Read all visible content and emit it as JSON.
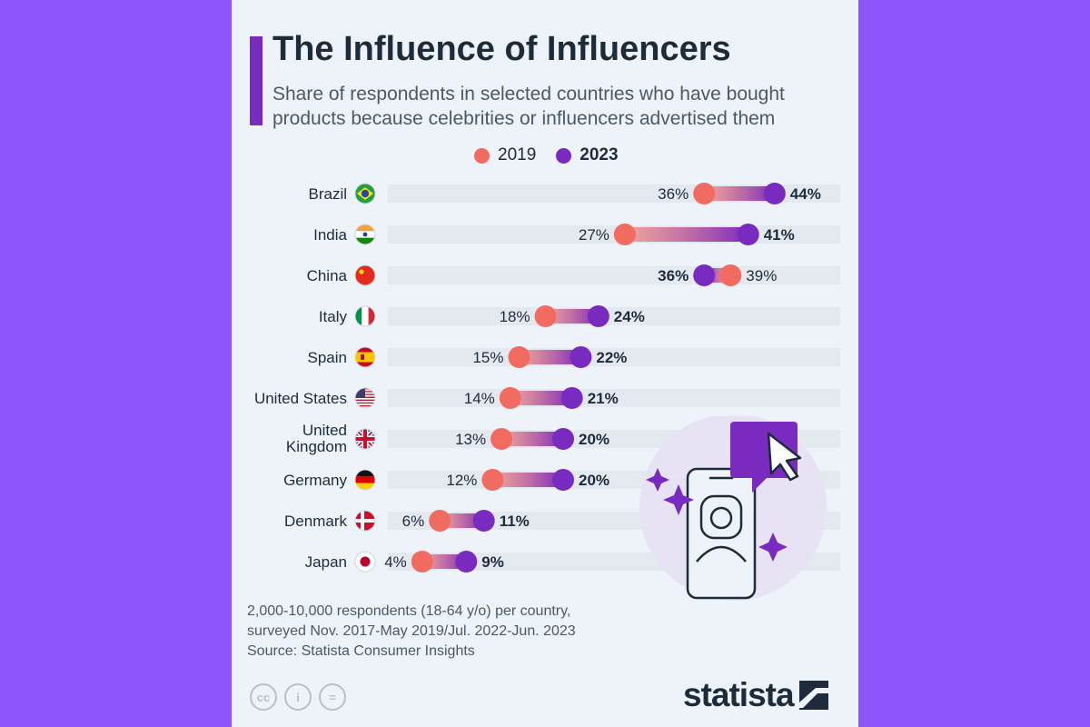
{
  "header": {
    "title": "The Influence of Influencers",
    "subtitle": "Share of respondents in selected countries who have bought products because celebrities or influencers advertised them"
  },
  "legend": {
    "items": [
      "2019",
      "2023"
    ]
  },
  "colors": {
    "c2019": "#f26b61",
    "c2023": "#7a2bbf",
    "track": "#e3e9ef",
    "text": "#1d2b3a",
    "accent": "#7a2bbf"
  },
  "chart_data": {
    "type": "dumbbell",
    "unit": "%",
    "xlim": [
      0,
      50
    ],
    "categories": [
      "Brazil",
      "India",
      "China",
      "Italy",
      "Spain",
      "United States",
      "United Kingdom",
      "Germany",
      "Denmark",
      "Japan"
    ],
    "category_lines": [
      [
        "Brazil"
      ],
      [
        "India"
      ],
      [
        "China"
      ],
      [
        "Italy"
      ],
      [
        "Spain"
      ],
      [
        "United States"
      ],
      [
        "United",
        "Kingdom"
      ],
      [
        "Germany"
      ],
      [
        "Denmark"
      ],
      [
        "Japan"
      ]
    ],
    "flags": [
      "brazil-flag-icon",
      "india-flag-icon",
      "china-flag-icon",
      "italy-flag-icon",
      "spain-flag-icon",
      "usa-flag-icon",
      "uk-flag-icon",
      "germany-flag-icon",
      "denmark-flag-icon",
      "japan-flag-icon"
    ],
    "series": [
      {
        "name": "2019",
        "values": [
          36,
          27,
          39,
          18,
          15,
          14,
          13,
          12,
          6,
          4
        ]
      },
      {
        "name": "2023",
        "values": [
          44,
          41,
          36,
          24,
          22,
          21,
          20,
          20,
          11,
          9
        ]
      }
    ]
  },
  "footer": {
    "note_line1": "2,000-10,000 respondents (18-64 y/o) per country,",
    "note_line2": "surveyed Nov. 2017-May 2019/Jul. 2022-Jun. 2023",
    "source": "Source: Statista Consumer Insights",
    "cc_icons": [
      "cc-icon",
      "attribution-icon",
      "no-derivatives-icon"
    ],
    "cc_labels": [
      "cc",
      "i",
      "="
    ],
    "logo": "statista"
  }
}
